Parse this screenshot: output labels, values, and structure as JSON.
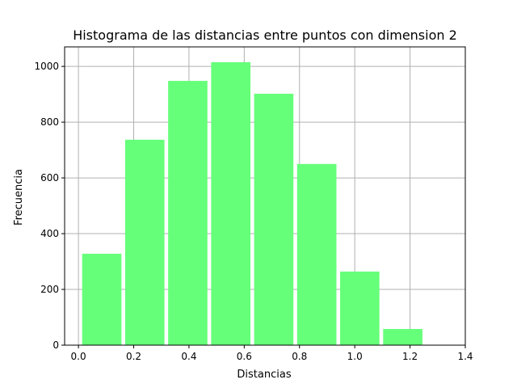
{
  "chart_data": {
    "type": "bar",
    "title": "Histograma de las distancias entre puntos con dimension 2",
    "xlabel": "Distancias",
    "ylabel": "Frecuencia",
    "xlim": [
      -0.05,
      1.4
    ],
    "ylim": [
      0,
      1070
    ],
    "xticks": [
      0.0,
      0.2,
      0.4,
      0.6,
      0.8,
      1.0,
      1.2,
      1.4
    ],
    "xtick_labels": [
      "0.0",
      "0.2",
      "0.4",
      "0.6",
      "0.8",
      "1.0",
      "1.2",
      "1.4"
    ],
    "yticks": [
      0,
      200,
      400,
      600,
      800,
      1000
    ],
    "ytick_labels": [
      "0",
      "200",
      "400",
      "600",
      "800",
      "1000"
    ],
    "grid": true,
    "bar_color": "#66ff7a",
    "bins": [
      {
        "start": 0.0134,
        "end": 0.1556,
        "value": 328
      },
      {
        "start": 0.169,
        "end": 0.3112,
        "value": 737
      },
      {
        "start": 0.3246,
        "end": 0.4668,
        "value": 948
      },
      {
        "start": 0.4802,
        "end": 0.6224,
        "value": 1015
      },
      {
        "start": 0.6358,
        "end": 0.778,
        "value": 902
      },
      {
        "start": 0.7914,
        "end": 0.9336,
        "value": 650
      },
      {
        "start": 0.947,
        "end": 1.0892,
        "value": 264
      },
      {
        "start": 1.1026,
        "end": 1.2448,
        "value": 58
      }
    ]
  }
}
